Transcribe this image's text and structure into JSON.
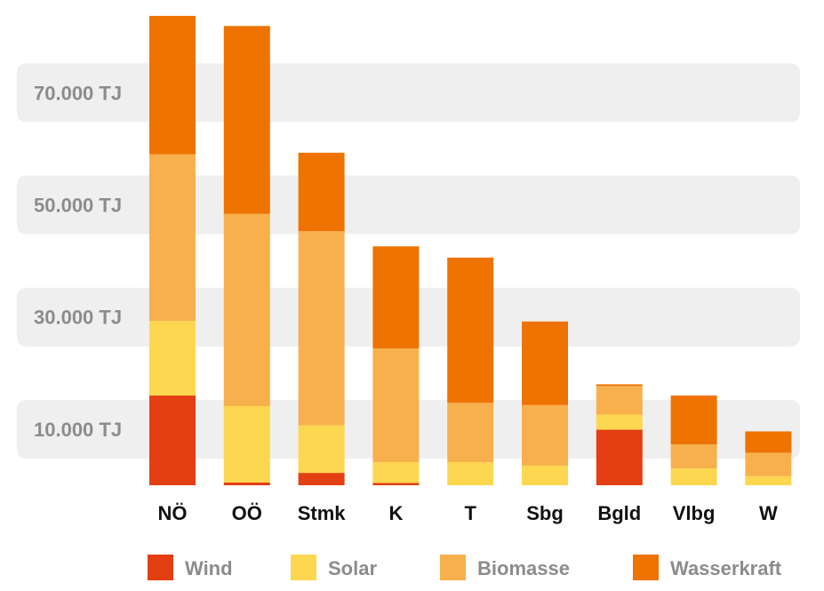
{
  "chart_data": {
    "type": "bar",
    "stacked": true,
    "title": "",
    "xlabel": "",
    "ylabel": "",
    "categories": [
      "NÖ",
      "OÖ",
      "Stmk",
      "K",
      "T",
      "Sbg",
      "Bgld",
      "Vlbg",
      "W"
    ],
    "yticks": [
      {
        "value": 10000,
        "label": "10.000 TJ"
      },
      {
        "value": 30000,
        "label": "30.000 TJ"
      },
      {
        "value": 50000,
        "label": "50.000 TJ"
      },
      {
        "value": 70000,
        "label": "70.000 TJ"
      }
    ],
    "ylim": [
      0,
      84000
    ],
    "grid": "alternating horizontal bands",
    "legend_position": "bottom",
    "series": [
      {
        "name": "Wind",
        "color": "#e43f12",
        "values": [
          16000,
          500,
          2200,
          400,
          0,
          0,
          9900,
          0,
          0
        ]
      },
      {
        "name": "Solar",
        "color": "#fdd74f",
        "values": [
          13300,
          13600,
          8500,
          3700,
          4100,
          3500,
          2700,
          3000,
          1600
        ]
      },
      {
        "name": "Biomasse",
        "color": "#f8b04d",
        "values": [
          29700,
          34300,
          34600,
          20300,
          10600,
          10800,
          5100,
          4300,
          4200
        ]
      },
      {
        "name": "Wasserkraft",
        "color": "#ee7300",
        "values": [
          24700,
          33500,
          14000,
          18200,
          25900,
          14900,
          300,
          8700,
          3800
        ]
      }
    ]
  }
}
